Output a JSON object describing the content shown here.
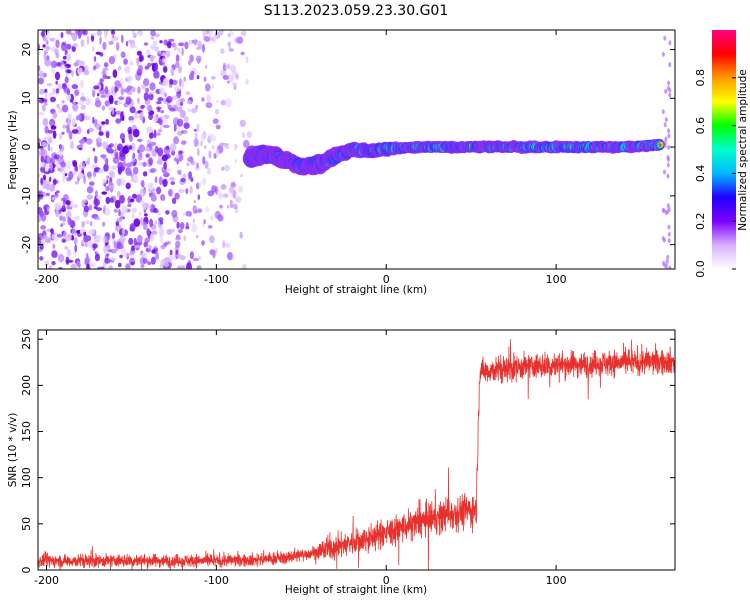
{
  "title": "S113.2023.059.23.30.G01",
  "colors": {
    "snr_line": "#e8302c",
    "signal_seeds": [
      "#8a2cf2",
      "#2f38ff",
      "#00c7d9",
      "#43e83a",
      "#ffcf1a",
      "#ff2b1f"
    ]
  },
  "chart_data": [
    {
      "type": "heatmap",
      "xlabel": "Height of straight line (km)",
      "ylabel": "Frequency (Hz)",
      "xlim": [
        -205,
        170
      ],
      "ylim": [
        -25,
        24
      ],
      "xticks": [
        -200,
        -100,
        0,
        100
      ],
      "yticks": [
        -20,
        -10,
        0,
        10,
        20
      ],
      "grid": false,
      "colorbar": {
        "label": "Normalized spectral amplitude",
        "range": [
          0,
          1
        ],
        "ticks": [
          0.0,
          0.2,
          0.4,
          0.6,
          0.8
        ],
        "colormap": [
          "#ffffff",
          "#d8b0ff",
          "#7d00ff",
          "#2000ff",
          "#00b8ff",
          "#00ffcc",
          "#00ff00",
          "#ffff00",
          "#ff9900",
          "#ff0000",
          "#ff0080"
        ]
      },
      "signal_track": [
        {
          "x": -80,
          "y": -2.0
        },
        {
          "x": -70,
          "y": -1.5
        },
        {
          "x": -60,
          "y": -2.5
        },
        {
          "x": -50,
          "y": -4.0
        },
        {
          "x": -40,
          "y": -3.5
        },
        {
          "x": -30,
          "y": -2.0
        },
        {
          "x": -20,
          "y": -0.5
        },
        {
          "x": -10,
          "y": -0.8
        },
        {
          "x": 0,
          "y": -0.3
        },
        {
          "x": 20,
          "y": 0
        },
        {
          "x": 60,
          "y": 0
        },
        {
          "x": 100,
          "y": 0
        },
        {
          "x": 140,
          "y": 0
        },
        {
          "x": 162,
          "y": 0.5
        }
      ]
    },
    {
      "type": "line",
      "xlabel": "Height of straight line (km)",
      "ylabel": "SNR (10 * v/v)",
      "xlim": [
        -205,
        170
      ],
      "ylim": [
        0,
        260
      ],
      "xticks": [
        -200,
        -100,
        0,
        100
      ],
      "yticks": [
        0,
        50,
        100,
        150,
        200,
        250
      ],
      "grid": false,
      "series": [
        {
          "color": "#e8302c",
          "x": [
            -205,
            -100,
            -80,
            -60,
            -40,
            -20,
            0,
            20,
            40,
            53,
            55,
            80,
            100,
            130,
            160,
            170
          ],
          "y": [
            10,
            10,
            11,
            13,
            20,
            30,
            40,
            52,
            62,
            66,
            215,
            220,
            222,
            224,
            226,
            226
          ]
        }
      ]
    }
  ]
}
